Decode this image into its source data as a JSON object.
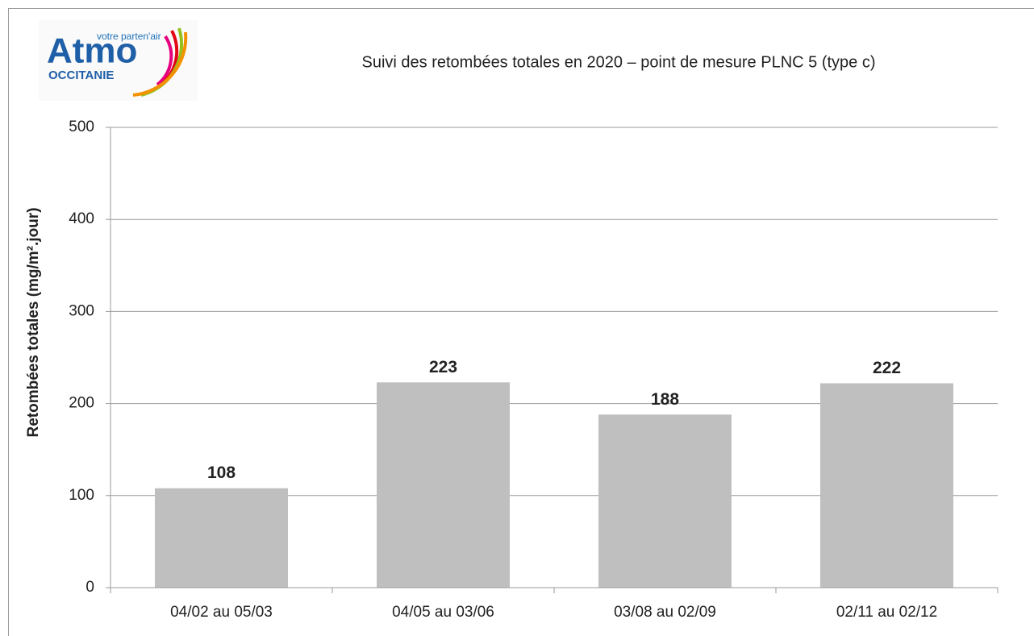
{
  "chart_data": {
    "type": "bar",
    "title": "Suivi des retombées totales en 2020 – point de mesure PLNC 5 (type c)",
    "logo": {
      "tagline": "votre parten'air",
      "name": "Atmo",
      "region": "OCCITANIE"
    },
    "y_label": "Retombées totales  (mg/m².jour)",
    "categories": [
      "04/02 au 05/03",
      "04/05 au 03/06",
      "03/08 au 02/09",
      "02/11 au 02/12"
    ],
    "values": [
      108,
      223,
      188,
      222
    ],
    "color": "#bfbfbf",
    "ylim": [
      0,
      500
    ],
    "yticks": [
      0,
      100,
      200,
      300,
      400,
      500
    ],
    "grid": true
  }
}
